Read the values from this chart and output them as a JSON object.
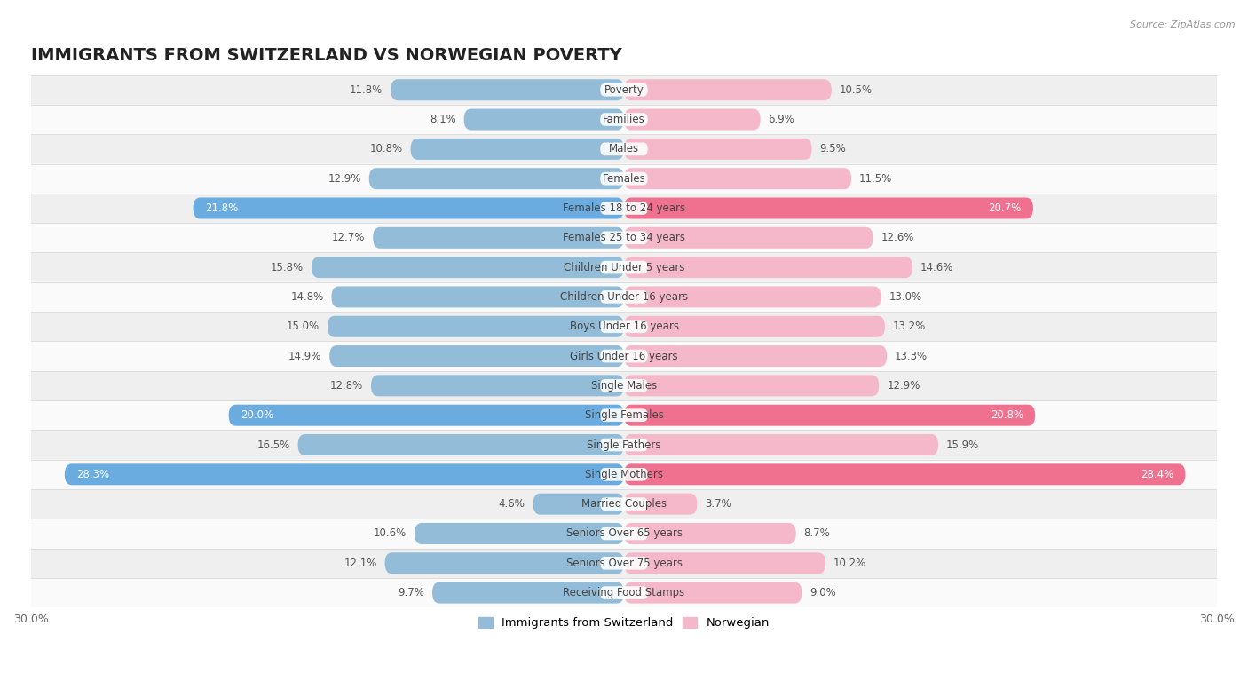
{
  "title": "IMMIGRANTS FROM SWITZERLAND VS NORWEGIAN POVERTY",
  "source": "Source: ZipAtlas.com",
  "categories": [
    "Poverty",
    "Families",
    "Males",
    "Females",
    "Females 18 to 24 years",
    "Females 25 to 34 years",
    "Children Under 5 years",
    "Children Under 16 years",
    "Boys Under 16 years",
    "Girls Under 16 years",
    "Single Males",
    "Single Females",
    "Single Fathers",
    "Single Mothers",
    "Married Couples",
    "Seniors Over 65 years",
    "Seniors Over 75 years",
    "Receiving Food Stamps"
  ],
  "switzerland_values": [
    11.8,
    8.1,
    10.8,
    12.9,
    21.8,
    12.7,
    15.8,
    14.8,
    15.0,
    14.9,
    12.8,
    20.0,
    16.5,
    28.3,
    4.6,
    10.6,
    12.1,
    9.7
  ],
  "norwegian_values": [
    10.5,
    6.9,
    9.5,
    11.5,
    20.7,
    12.6,
    14.6,
    13.0,
    13.2,
    13.3,
    12.9,
    20.8,
    15.9,
    28.4,
    3.7,
    8.7,
    10.2,
    9.0
  ],
  "switzerland_color": "#92bcd8",
  "norwegian_color": "#f5b8ca",
  "switzerland_highlight_color": "#6aabe0",
  "norwegian_highlight_color": "#f07090",
  "highlight_rows": [
    4,
    11,
    13
  ],
  "background_color": "#ffffff",
  "row_alt_color": "#efefef",
  "row_main_color": "#fafafa",
  "xlim": 30.0,
  "legend_switzerland": "Immigrants from Switzerland",
  "legend_norwegian": "Norwegian",
  "title_fontsize": 14,
  "label_fontsize": 8.5,
  "value_fontsize": 8.5
}
